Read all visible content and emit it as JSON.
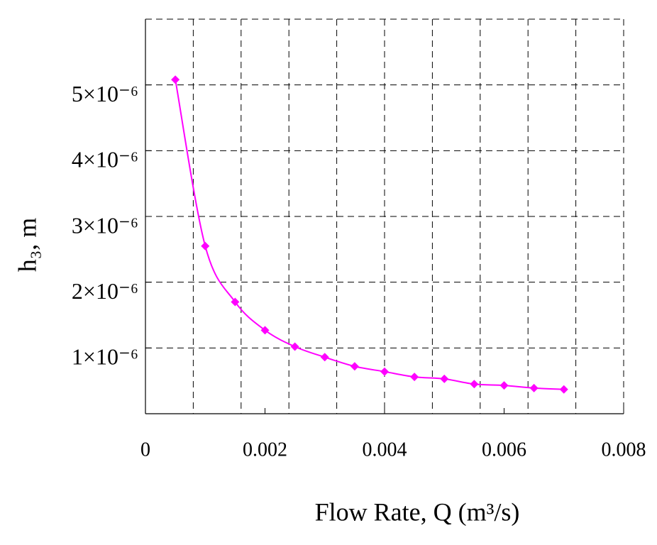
{
  "chart_data": {
    "type": "line",
    "x_label": "Flow Rate, Q (m³/s)",
    "y_label": "h₃, m",
    "x": [
      0.0005,
      0.001,
      0.0015,
      0.002,
      0.0025,
      0.003,
      0.0035,
      0.004,
      0.0045,
      0.005,
      0.0055,
      0.006,
      0.0065,
      0.007
    ],
    "series": [
      {
        "color": "#ff00ff",
        "values": [
          5.08e-06,
          2.55e-06,
          1.7e-06,
          1.27e-06,
          1.02e-06,
          8.6e-07,
          7.2e-07,
          6.4e-07,
          5.6e-07,
          5.3e-07,
          4.5e-07,
          4.3e-07,
          3.9e-07,
          3.7e-07
        ]
      }
    ],
    "xlim": [
      0,
      0.008
    ],
    "xticks": [
      0,
      0.002,
      0.004,
      0.006,
      0.008
    ],
    "ylim": [
      0,
      6e-06
    ],
    "yticks": [
      {
        "value": 1e-06,
        "label": "1×10⁻⁶"
      },
      {
        "value": 2e-06,
        "label": "2×10⁻⁶"
      },
      {
        "value": 3e-06,
        "label": "3×10⁻⁶"
      },
      {
        "value": 4e-06,
        "label": "4×10⁻⁶"
      },
      {
        "value": 5e-06,
        "label": "5×10⁻⁶"
      }
    ],
    "xgrid_divisions": 10,
    "grid": true,
    "marker": "diamond"
  }
}
